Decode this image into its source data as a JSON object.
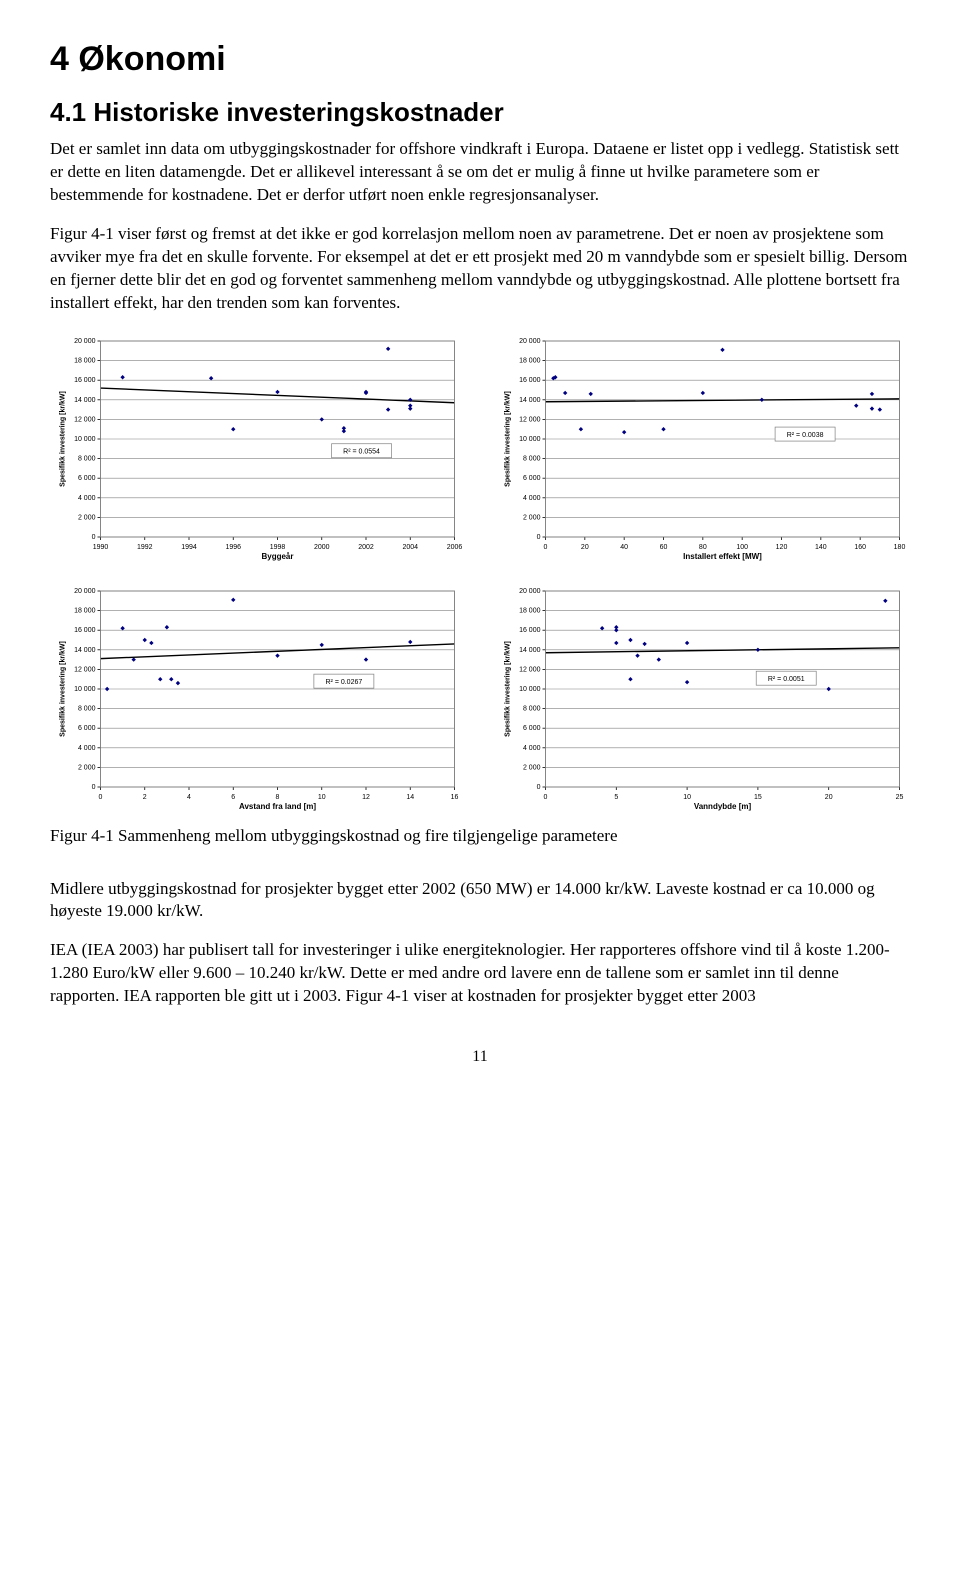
{
  "title": "4 Økonomi",
  "subtitle": "4.1 Historiske investeringskostnader",
  "para1": "Det er samlet inn data om utbyggingskostnader for offshore vindkraft i Europa. Dataene er listet opp i vedlegg. Statistisk sett er dette en liten datamengde. Det er allikevel interessant å se om det er mulig å finne ut hvilke parametere som er bestemmende for kostnadene. Det er derfor utført noen enkle regresjonsanalyser.",
  "para2": "Figur 4-1 viser først og fremst at det ikke er god korrelasjon mellom noen av parametrene. Det er noen av prosjektene som avviker mye fra det en skulle forvente. For eksempel at det er ett prosjekt med 20 m vanndybde som er spesielt billig. Dersom en fjerner dette blir det en god og forventet sammenheng mellom vanndybde og utbyggingskostnad. Alle plottene bortsett fra installert effekt, har den trenden som kan forventes.",
  "fig_caption": "Figur 4-1 Sammenheng mellom utbyggingskostnad og fire tilgjengelige parametere",
  "para3": "Midlere utbyggingskostnad for prosjekter bygget etter 2002 (650 MW) er 14.000 kr/kW. Laveste kostnad er ca 10.000 og høyeste 19.000 kr/kW.",
  "para4": "IEA (IEA 2003) har publisert tall for investeringer i ulike energiteknologier. Her rapporteres offshore vind til å koste 1.200-1.280 Euro/kW eller 9.600 – 10.240 kr/kW. Dette er med andre ord lavere enn de tallene som er samlet inn til denne rapporten. IEA rapporten ble gitt ut i 2003. Figur 4-1 viser at kostnaden for prosjekter bygget etter 2003",
  "page_num": "11",
  "chart_common": {
    "ylabel": "Spesifikk investering [kr/kW]",
    "ylabel_fontsize": 7,
    "tick_fontsize": 7,
    "ylim": [
      0,
      20000
    ],
    "ytick_step": 2000,
    "point_color": "#000080",
    "point_size": 2.2,
    "trend_color": "#000000",
    "trend_width": 1.4,
    "grid_color": "#808080",
    "grid_width": 0.6,
    "border_color": "#808080",
    "background": "#ffffff",
    "r2_fontsize": 7
  },
  "chart1": {
    "xlabel": "Byggeår",
    "xlim": [
      1990,
      2006
    ],
    "xtick_step": 2,
    "r2_text": "R² = 0.0554",
    "r2_pos": [
      2001.8,
      8700
    ],
    "points": [
      [
        1991,
        16300
      ],
      [
        1995,
        16200
      ],
      [
        1996,
        11000
      ],
      [
        1998,
        14800
      ],
      [
        2000,
        12000
      ],
      [
        2001,
        10800
      ],
      [
        2001,
        11100
      ],
      [
        2002,
        14700
      ],
      [
        2002,
        14800
      ],
      [
        2003,
        13000
      ],
      [
        2003,
        19200
      ],
      [
        2004,
        13400
      ],
      [
        2004,
        13100
      ],
      [
        2004,
        14000
      ]
    ],
    "trend": [
      [
        1990,
        15200
      ],
      [
        2006,
        13700
      ]
    ]
  },
  "chart2": {
    "xlabel": "Installert effekt [MW]",
    "xlim": [
      0,
      180
    ],
    "xtick_step": 20,
    "r2_text": "R² = 0.0038",
    "r2_pos": [
      132,
      10400
    ],
    "points": [
      [
        4,
        16200
      ],
      [
        5,
        16300
      ],
      [
        10,
        14700
      ],
      [
        18,
        11000
      ],
      [
        23,
        14600
      ],
      [
        40,
        10700
      ],
      [
        60,
        11000
      ],
      [
        80,
        14700
      ],
      [
        90,
        19100
      ],
      [
        110,
        14000
      ],
      [
        158,
        13400
      ],
      [
        166,
        13100
      ],
      [
        166,
        14600
      ],
      [
        170,
        13000
      ]
    ],
    "trend": [
      [
        0,
        13800
      ],
      [
        180,
        14100
      ]
    ]
  },
  "chart3": {
    "xlabel": "Avstand fra land [m]",
    "xlim": [
      0,
      16
    ],
    "xtick_step": 2,
    "r2_text": "R² = 0.0267",
    "r2_pos": [
      11,
      10700
    ],
    "points": [
      [
        0.3,
        10000
      ],
      [
        1,
        16200
      ],
      [
        1.5,
        13000
      ],
      [
        2,
        15000
      ],
      [
        2.3,
        14700
      ],
      [
        2.7,
        11000
      ],
      [
        3,
        16300
      ],
      [
        3.2,
        11000
      ],
      [
        3.5,
        10600
      ],
      [
        6,
        19100
      ],
      [
        8,
        13400
      ],
      [
        10,
        14500
      ],
      [
        12,
        13000
      ],
      [
        14,
        14800
      ]
    ],
    "trend": [
      [
        0,
        13100
      ],
      [
        16,
        14600
      ]
    ]
  },
  "chart4": {
    "xlabel": "Vanndybde [m]",
    "xlim": [
      0,
      25
    ],
    "xtick_step": 5,
    "r2_text": "R² = 0.0051",
    "r2_pos": [
      17,
      11000
    ],
    "points": [
      [
        4,
        16200
      ],
      [
        5,
        16300
      ],
      [
        5,
        16000
      ],
      [
        5,
        14700
      ],
      [
        6,
        15000
      ],
      [
        6,
        11000
      ],
      [
        6.5,
        13400
      ],
      [
        7,
        14600
      ],
      [
        8,
        13000
      ],
      [
        10,
        14700
      ],
      [
        10,
        10700
      ],
      [
        15,
        14000
      ],
      [
        20,
        10000
      ],
      [
        24,
        19000
      ]
    ],
    "trend": [
      [
        0,
        13700
      ],
      [
        25,
        14200
      ]
    ]
  }
}
